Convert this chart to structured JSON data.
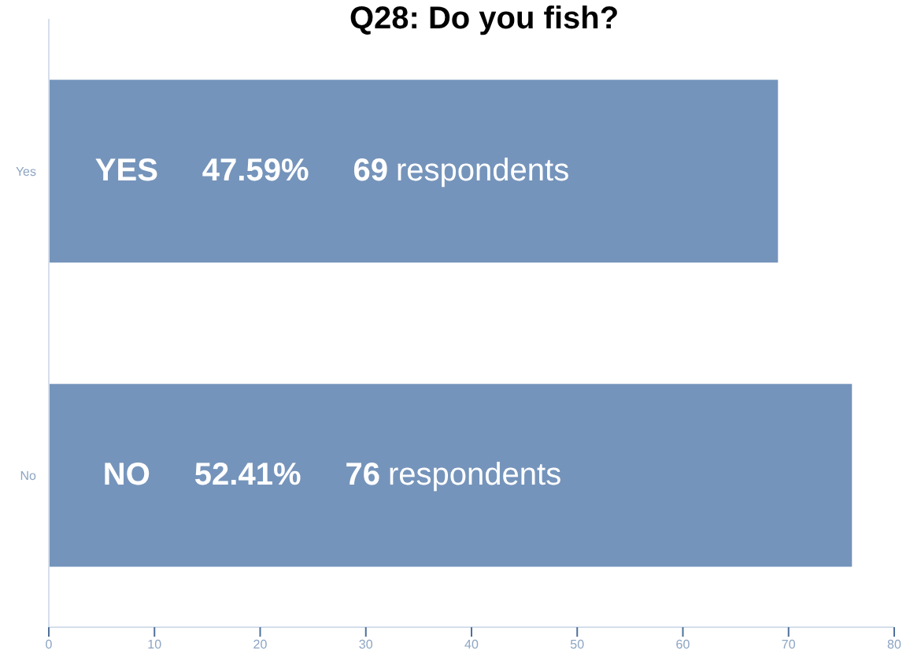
{
  "chart_data": {
    "type": "bar",
    "orientation": "horizontal",
    "title": "Q28: Do you fish?",
    "categories": [
      "Yes",
      "No"
    ],
    "values": [
      69,
      76
    ],
    "value_labels": [
      "YES   47.59%   69 respondents",
      "NO   52.41%   76 respondents"
    ],
    "color": "#7594bb",
    "xlim": [
      0,
      80
    ],
    "xticks": [
      0,
      10,
      20,
      30,
      40,
      50,
      60,
      70,
      80
    ],
    "grid": false,
    "legend": false
  }
}
